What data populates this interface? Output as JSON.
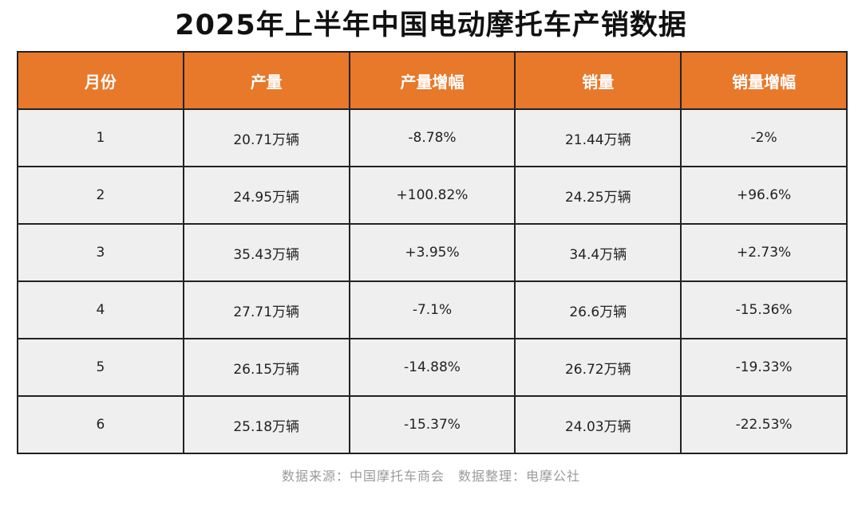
{
  "title": "2025年上半年中国电动摩托车产销数据",
  "table": {
    "headers": [
      "月份",
      "产量",
      "产量增幅",
      "销量",
      "销量增幅"
    ],
    "rows": [
      [
        "1",
        "20.71万辆",
        "-8.78%",
        "21.44万辆",
        "-2%"
      ],
      [
        "2",
        "24.95万辆",
        "+100.82%",
        "24.25万辆",
        "+96.6%"
      ],
      [
        "3",
        "35.43万辆",
        "+3.95%",
        "34.4万辆",
        "+2.73%"
      ],
      [
        "4",
        "27.71万辆",
        "-7.1%",
        "26.6万辆",
        "-15.36%"
      ],
      [
        "5",
        "26.15万辆",
        "-14.88%",
        "26.72万辆",
        "-19.33%"
      ],
      [
        "6",
        "25.18万辆",
        "-15.37%",
        "24.03万辆",
        "-22.53%"
      ]
    ]
  },
  "footer": {
    "source": "数据来源：中国摩托车商会　数据整理：电摩公社"
  },
  "colors": {
    "header_bg": "#e8782a",
    "cell_bg": "#efefef",
    "border": "#222222"
  }
}
